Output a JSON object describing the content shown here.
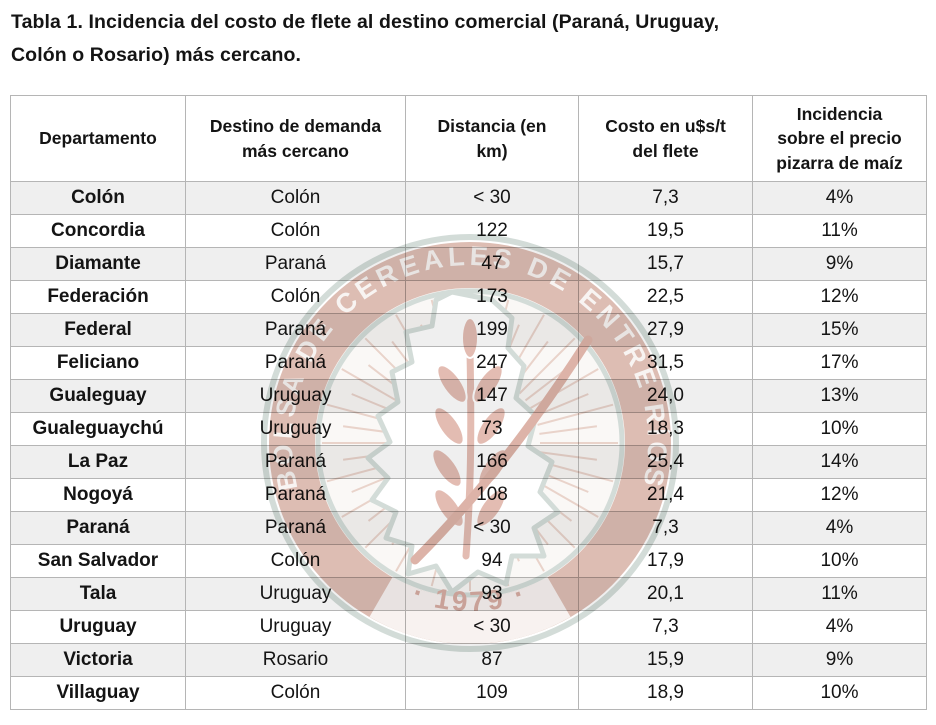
{
  "title": "Tabla 1. Incidencia del costo de flete al destino comercial (Paraná, Uruguay,\nColón o Rosario) más cercano.",
  "table": {
    "columns": [
      "Departamento",
      "Destino de demanda\nmás cercano",
      "Distancia (en\nkm)",
      "Costo en u$s/t\ndel flete",
      "Incidencia\nsobre el precio\npizarra de maíz"
    ],
    "column_keys": [
      "departamento",
      "destino",
      "distancia",
      "costo",
      "incidencia"
    ],
    "rows": [
      [
        "Colón",
        "Colón",
        "< 30",
        "7,3",
        "4%"
      ],
      [
        "Concordia",
        "Colón",
        "122",
        "19,5",
        "11%"
      ],
      [
        "Diamante",
        "Paraná",
        "47",
        "15,7",
        "9%"
      ],
      [
        "Federación",
        "Colón",
        "173",
        "22,5",
        "12%"
      ],
      [
        "Federal",
        "Paraná",
        "199",
        "27,9",
        "15%"
      ],
      [
        "Feliciano",
        "Paraná",
        "247",
        "31,5",
        "17%"
      ],
      [
        "Gualeguay",
        "Uruguay",
        "147",
        "24,0",
        "13%"
      ],
      [
        "Gualeguaychú",
        "Uruguay",
        "73",
        "18,3",
        "10%"
      ],
      [
        "La Paz",
        "Paraná",
        "166",
        "25,4",
        "14%"
      ],
      [
        "Nogoyá",
        "Paraná",
        "108",
        "21,4",
        "12%"
      ],
      [
        "Paraná",
        "Paraná",
        "< 30",
        "7,3",
        "4%"
      ],
      [
        "San Salvador",
        "Colón",
        "94",
        "17,9",
        "10%"
      ],
      [
        "Tala",
        "Uruguay",
        "93",
        "20,1",
        "11%"
      ],
      [
        "Uruguay",
        "Uruguay",
        "< 30",
        "7,3",
        "4%"
      ],
      [
        "Victoria",
        "Rosario",
        "87",
        "15,9",
        "9%"
      ],
      [
        "Villaguay",
        "Colón",
        "109",
        "18,9",
        "10%"
      ]
    ]
  },
  "chart_data": {
    "type": "table",
    "title": "Tabla 1. Incidencia del costo de flete al destino comercial (Paraná, Uruguay, Colón o Rosario) más cercano.",
    "columns": [
      "Departamento",
      "Destino de demanda más cercano",
      "Distancia (en km)",
      "Costo en u$s/t del flete",
      "Incidencia sobre el precio pizarra de maíz"
    ],
    "rows": [
      [
        "Colón",
        "Colón",
        "< 30",
        7.3,
        "4%"
      ],
      [
        "Concordia",
        "Colón",
        122,
        19.5,
        "11%"
      ],
      [
        "Diamante",
        "Paraná",
        47,
        15.7,
        "9%"
      ],
      [
        "Federación",
        "Colón",
        173,
        22.5,
        "12%"
      ],
      [
        "Federal",
        "Paraná",
        199,
        27.9,
        "15%"
      ],
      [
        "Feliciano",
        "Paraná",
        247,
        31.5,
        "17%"
      ],
      [
        "Gualeguay",
        "Uruguay",
        147,
        24.0,
        "13%"
      ],
      [
        "Gualeguaychú",
        "Uruguay",
        73,
        18.3,
        "10%"
      ],
      [
        "La Paz",
        "Paraná",
        166,
        25.4,
        "14%"
      ],
      [
        "Nogoyá",
        "Paraná",
        108,
        21.4,
        "12%"
      ],
      [
        "Paraná",
        "Paraná",
        "< 30",
        7.3,
        "4%"
      ],
      [
        "San Salvador",
        "Colón",
        94,
        17.9,
        "10%"
      ],
      [
        "Tala",
        "Uruguay",
        93,
        20.1,
        "11%"
      ],
      [
        "Uruguay",
        "Uruguay",
        "< 30",
        7.3,
        "4%"
      ],
      [
        "Victoria",
        "Rosario",
        87,
        15.9,
        "9%"
      ],
      [
        "Villaguay",
        "Colón",
        109,
        18.9,
        "10%"
      ]
    ]
  },
  "watermark": {
    "text_top": "BOLSA DE CEREALES DE ENTRE RÍOS",
    "text_bottom": "· 1979 ·"
  },
  "colors": {
    "page_bg": "#ffffff",
    "text": "#141414",
    "stripe": "#efefef",
    "border": "#b5b5b5",
    "wm_band": "#d9b4a9",
    "wm_band_light": "#f7f1ee",
    "wm_halo": "#cdd7d3",
    "wm_rays": "#e6cdc3",
    "wm_interior": "#faf7f5",
    "wm_wheat": "#e0b3a7",
    "wm_quill": "#d9a99c",
    "wm_text": "#f7f3f1",
    "wm_year": "#d2a195"
  }
}
